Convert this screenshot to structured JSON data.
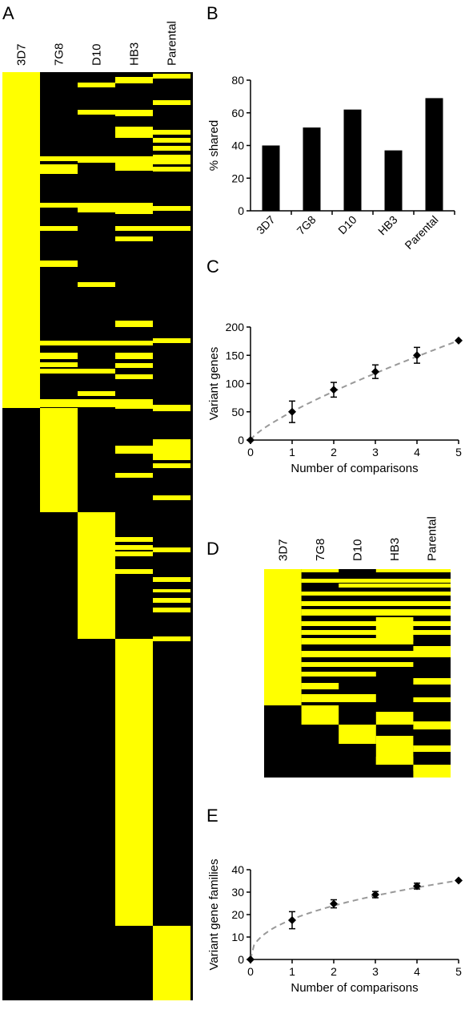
{
  "colors": {
    "on": "#ffff00",
    "off": "#000000",
    "bar": "#000000",
    "fit": "#999999"
  },
  "chart_data": [
    {
      "panel": "A",
      "type": "heatmap",
      "columns": [
        "3D7",
        "7G8",
        "D10",
        "HB3",
        "Parental"
      ],
      "values_note_free": true,
      "rows": 176,
      "block_rows": {
        "3D7": 73,
        "7G8": 17,
        "D10": 19,
        "HB3": 56,
        "Parental": 11
      }
    },
    {
      "panel": "B",
      "type": "bar",
      "categories": [
        "3D7",
        "7G8",
        "D10",
        "HB3",
        "Parental"
      ],
      "values": [
        40,
        51,
        62,
        37,
        69
      ],
      "ylabel": "% shared",
      "ylim": [
        0,
        80
      ],
      "yticks": [
        0,
        20,
        40,
        60,
        80
      ]
    },
    {
      "panel": "C",
      "type": "scatter",
      "x": [
        0,
        1,
        2,
        3,
        4,
        5
      ],
      "y": [
        0,
        50,
        89,
        121,
        150,
        176
      ],
      "yerr": [
        0,
        19,
        13,
        12,
        14,
        0
      ],
      "xlabel": "Number of comparisons",
      "ylabel": "Variant genes",
      "xlim": [
        0,
        5
      ],
      "ylim": [
        0,
        200
      ],
      "xticks": [
        0,
        1,
        2,
        3,
        4,
        5
      ],
      "yticks": [
        0,
        50,
        100,
        150,
        200
      ]
    },
    {
      "panel": "D",
      "type": "heatmap",
      "columns": [
        "3D7",
        "7G8",
        "D10",
        "HB3",
        "Parental"
      ],
      "rows": 35
    },
    {
      "panel": "E",
      "type": "scatter",
      "x": [
        0,
        1,
        2,
        3,
        4,
        5
      ],
      "y": [
        0,
        17.5,
        24.8,
        28.9,
        32.7,
        35.2
      ],
      "yerr": [
        0,
        3.8,
        1.8,
        1.4,
        1.3,
        0
      ],
      "xlabel": "Number of comparisons",
      "ylabel": "Variant gene families",
      "xlim": [
        0,
        5
      ],
      "ylim": [
        0,
        40
      ],
      "xticks": [
        0,
        1,
        2,
        3,
        4,
        5
      ],
      "yticks": [
        0,
        10,
        20,
        30,
        40
      ]
    }
  ],
  "labels": {
    "a": "A",
    "b": "B",
    "c": "C",
    "d": "D",
    "e": "E"
  }
}
